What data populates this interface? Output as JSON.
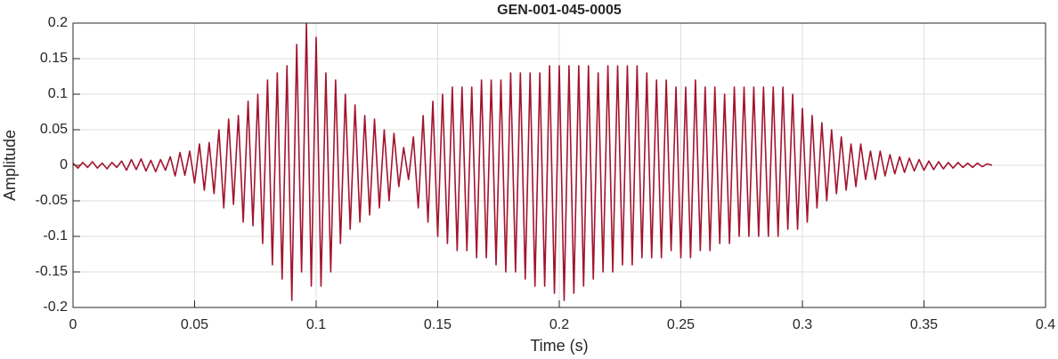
{
  "chart_data": {
    "type": "line",
    "title": "GEN-001-045-0005",
    "xlabel": "Time (s)",
    "ylabel": "Amplitude",
    "color": "#a2142f",
    "grid": true,
    "xlim": [
      0,
      0.4
    ],
    "ylim": [
      -0.2,
      0.2
    ],
    "xticks": [
      0,
      0.05,
      0.1,
      0.15,
      0.2,
      0.25,
      0.3,
      0.35,
      0.4
    ],
    "yticks": [
      -0.2,
      -0.15,
      -0.1,
      -0.05,
      0,
      0.05,
      0.1,
      0.15,
      0.2
    ],
    "x": [
      0,
      0.002,
      0.004,
      0.006,
      0.008,
      0.01,
      0.012,
      0.014,
      0.016,
      0.018,
      0.02,
      0.022,
      0.024,
      0.026,
      0.028,
      0.03,
      0.032,
      0.034,
      0.036,
      0.038,
      0.04,
      0.042,
      0.044,
      0.046,
      0.048,
      0.05,
      0.052,
      0.054,
      0.056,
      0.058,
      0.06,
      0.062,
      0.064,
      0.066,
      0.068,
      0.07,
      0.072,
      0.074,
      0.076,
      0.078,
      0.08,
      0.082,
      0.084,
      0.086,
      0.088,
      0.09,
      0.092,
      0.094,
      0.096,
      0.098,
      0.1,
      0.102,
      0.104,
      0.106,
      0.108,
      0.11,
      0.112,
      0.114,
      0.116,
      0.118,
      0.12,
      0.122,
      0.124,
      0.126,
      0.128,
      0.13,
      0.132,
      0.134,
      0.136,
      0.138,
      0.14,
      0.142,
      0.144,
      0.146,
      0.148,
      0.15,
      0.152,
      0.154,
      0.156,
      0.158,
      0.16,
      0.162,
      0.164,
      0.166,
      0.168,
      0.17,
      0.172,
      0.174,
      0.176,
      0.178,
      0.18,
      0.182,
      0.184,
      0.186,
      0.188,
      0.19,
      0.192,
      0.194,
      0.196,
      0.198,
      0.2,
      0.202,
      0.204,
      0.206,
      0.208,
      0.21,
      0.212,
      0.214,
      0.216,
      0.218,
      0.22,
      0.222,
      0.224,
      0.226,
      0.228,
      0.23,
      0.232,
      0.234,
      0.236,
      0.238,
      0.24,
      0.242,
      0.244,
      0.246,
      0.248,
      0.25,
      0.252,
      0.254,
      0.256,
      0.258,
      0.26,
      0.262,
      0.264,
      0.266,
      0.268,
      0.27,
      0.272,
      0.274,
      0.276,
      0.278,
      0.28,
      0.282,
      0.284,
      0.286,
      0.288,
      0.29,
      0.292,
      0.294,
      0.296,
      0.298,
      0.3,
      0.302,
      0.304,
      0.306,
      0.308,
      0.31,
      0.312,
      0.314,
      0.316,
      0.318,
      0.32,
      0.322,
      0.324,
      0.326,
      0.328,
      0.33,
      0.332,
      0.334,
      0.336,
      0.338,
      0.34,
      0.342,
      0.344,
      0.346,
      0.348,
      0.35,
      0.352,
      0.354,
      0.356,
      0.358,
      0.36,
      0.362,
      0.364,
      0.366,
      0.368,
      0.37,
      0.372,
      0.374,
      0.376,
      0.378
    ],
    "values": [
      0.003,
      -0.004,
      0.004,
      -0.003,
      0.005,
      -0.004,
      0.003,
      -0.005,
      0.004,
      -0.003,
      0.006,
      -0.007,
      0.008,
      -0.006,
      0.009,
      -0.008,
      0.007,
      -0.009,
      0.008,
      -0.007,
      0.012,
      -0.015,
      0.018,
      -0.014,
      0.02,
      -0.025,
      0.03,
      -0.035,
      0.032,
      -0.04,
      0.05,
      -0.06,
      0.065,
      -0.055,
      0.07,
      -0.08,
      0.09,
      -0.085,
      0.1,
      -0.11,
      0.12,
      -0.14,
      0.13,
      -0.16,
      0.14,
      -0.19,
      0.17,
      -0.15,
      0.2,
      -0.17,
      0.18,
      -0.17,
      0.13,
      -0.15,
      0.12,
      -0.11,
      0.1,
      -0.09,
      0.085,
      -0.08,
      0.07,
      -0.07,
      0.065,
      -0.06,
      0.05,
      -0.05,
      0.045,
      -0.03,
      0.025,
      -0.02,
      0.04,
      -0.06,
      0.07,
      -0.08,
      0.09,
      -0.1,
      0.1,
      -0.11,
      0.11,
      -0.12,
      0.11,
      -0.12,
      0.11,
      -0.13,
      0.12,
      -0.13,
      0.12,
      -0.14,
      0.12,
      -0.15,
      0.13,
      -0.15,
      0.13,
      -0.16,
      0.13,
      -0.17,
      0.13,
      -0.17,
      0.14,
      -0.18,
      0.14,
      -0.19,
      0.14,
      -0.18,
      0.14,
      -0.17,
      0.14,
      -0.16,
      0.13,
      -0.15,
      0.14,
      -0.15,
      0.14,
      -0.14,
      0.14,
      -0.14,
      0.14,
      -0.13,
      0.13,
      -0.13,
      0.12,
      -0.13,
      0.12,
      -0.12,
      0.11,
      -0.13,
      0.11,
      -0.13,
      0.12,
      -0.12,
      0.11,
      -0.12,
      0.11,
      -0.11,
      0.1,
      -0.11,
      0.11,
      -0.1,
      0.11,
      -0.1,
      0.11,
      -0.1,
      0.11,
      -0.1,
      0.11,
      -0.1,
      0.11,
      -0.09,
      0.1,
      -0.09,
      0.08,
      -0.08,
      0.07,
      -0.06,
      0.06,
      -0.05,
      0.05,
      -0.04,
      0.04,
      -0.035,
      0.03,
      -0.03,
      0.03,
      -0.02,
      0.02,
      -0.02,
      0.02,
      -0.015,
      0.015,
      -0.012,
      0.012,
      -0.01,
      0.01,
      -0.008,
      0.008,
      -0.007,
      0.006,
      -0.006,
      0.005,
      -0.005,
      0.004,
      -0.004,
      0.004,
      -0.003,
      0.003,
      -0.003,
      0.003,
      -0.002,
      0.002,
      0
    ]
  }
}
